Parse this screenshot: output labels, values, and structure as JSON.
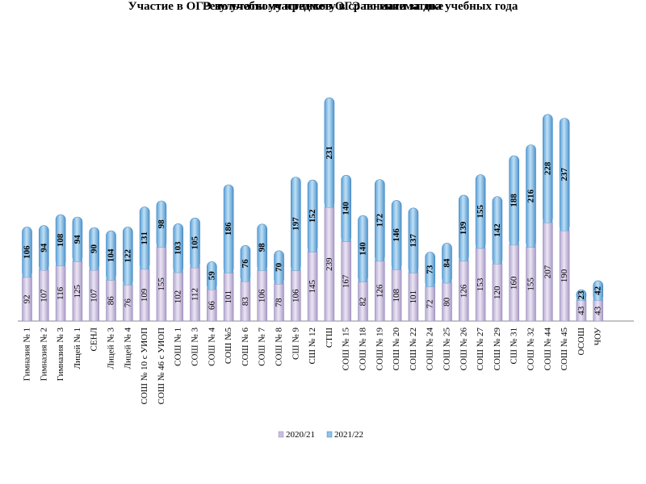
{
  "chart_data": {
    "type": "bar",
    "stacked": true,
    "title": "Результаты участников ОГЭ по математике",
    "subtitle": "Участие в ОГЭ по учебному предмету в сравнении за два учебных года",
    "categories": [
      "Гимназия № 1",
      "Гимназия № 2",
      "Гимназия № 3",
      "Лицей № 1",
      "СЕНЛ",
      "Лицей № 3",
      "Лицей № 4",
      "СОШ № 10 с УИОП",
      "СОШ № 46 с УИОП",
      "СОШ № 1",
      "СОШ № 3",
      "СОШ № 4",
      "СОШ №5",
      "СОШ № 6",
      "СОШ № 7",
      "СОШ № 8",
      "СШ № 9",
      "СШ № 12",
      "СТШ",
      "СОШ № 15",
      "СОШ № 18",
      "СОШ № 19",
      "СОШ № 20",
      "СОШ № 22",
      "СОШ № 24",
      "СОШ № 25",
      "СОШ № 26",
      "СОШ № 27",
      "СОШ № 29",
      "СШ № 31",
      "СОШ № 32",
      "СОШ № 44",
      "СОШ № 45",
      "ОСОШ",
      "ЧОУ"
    ],
    "series": [
      {
        "name": "2020/21",
        "color": "#c9bde0",
        "values": [
          92,
          107,
          116,
          125,
          107,
          86,
          76,
          109,
          155,
          102,
          112,
          66,
          101,
          83,
          106,
          78,
          106,
          145,
          239,
          167,
          82,
          126,
          108,
          101,
          72,
          80,
          126,
          153,
          120,
          160,
          155,
          207,
          190,
          43,
          43
        ]
      },
      {
        "name": "2021/22",
        "color": "#8fc3e6",
        "values": [
          106,
          94,
          108,
          94,
          90,
          104,
          122,
          131,
          98,
          103,
          105,
          59,
          186,
          76,
          98,
          70,
          197,
          152,
          231,
          140,
          140,
          172,
          146,
          137,
          73,
          84,
          139,
          155,
          142,
          188,
          216,
          228,
          237,
          23,
          42
        ]
      }
    ],
    "legend_position": "bottom-center",
    "grid": false
  }
}
